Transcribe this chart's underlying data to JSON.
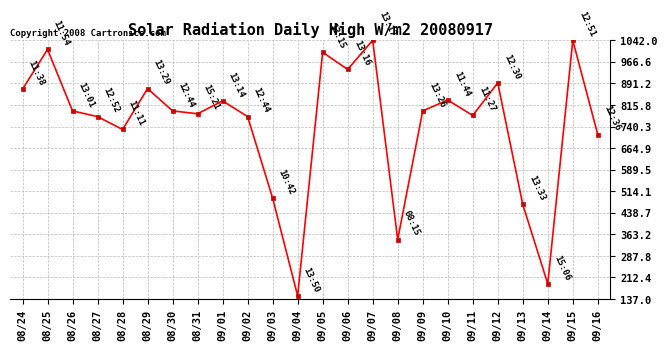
{
  "title": "Solar Radiation Daily High W/m2 20080917",
  "copyright": "Copyright 2008 Cartronics.com",
  "dates": [
    "08/24",
    "08/25",
    "08/26",
    "08/27",
    "08/28",
    "08/29",
    "08/30",
    "08/31",
    "09/01",
    "09/02",
    "09/03",
    "09/04",
    "09/05",
    "09/06",
    "09/07",
    "09/08",
    "09/09",
    "09/10",
    "09/11",
    "09/12",
    "09/13",
    "09/14",
    "09/15",
    "09/16"
  ],
  "values": [
    871,
    1010,
    795,
    775,
    730,
    873,
    795,
    785,
    830,
    775,
    490,
    148,
    1000,
    940,
    1042,
    345,
    795,
    833,
    779,
    893,
    468,
    190,
    1042,
    712
  ],
  "times": [
    "11:38",
    "11:54",
    "13:01",
    "12:52",
    "11:11",
    "13:29",
    "12:44",
    "15:21",
    "13:14",
    "12:44",
    "10:42",
    "13:50",
    "13:15",
    "13:16",
    "13:17",
    "08:15",
    "13:26",
    "11:44",
    "11:27",
    "12:30",
    "13:33",
    "15:06",
    "12:51",
    "12:36"
  ],
  "ylim": [
    137.0,
    1042.0
  ],
  "yticks": [
    137.0,
    212.4,
    287.8,
    363.2,
    438.7,
    514.1,
    589.5,
    664.9,
    740.3,
    815.8,
    891.2,
    966.6,
    1042.0
  ],
  "line_color": "#ff0000",
  "marker_color": "#cc0000",
  "bg_color": "#ffffff",
  "grid_color": "#bbbbbb",
  "title_fontsize": 11,
  "tick_fontsize": 7.5,
  "annot_fontsize": 6.5
}
